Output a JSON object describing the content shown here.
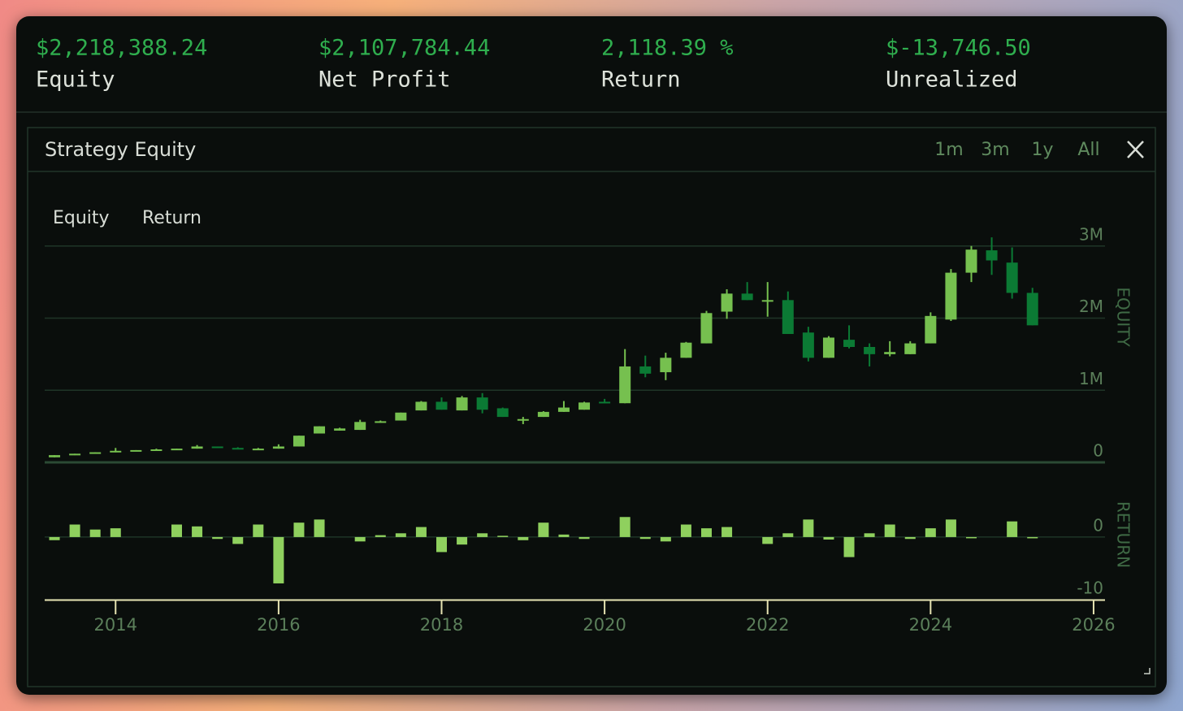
{
  "header": {
    "stats": [
      {
        "value": "$2,218,388.24",
        "label": "Equity"
      },
      {
        "value": "$2,107,784.44",
        "label": "Net Profit"
      },
      {
        "value": "2,118.39 %",
        "label": "Return"
      },
      {
        "value": "$-13,746.50",
        "label": "Unrealized"
      }
    ]
  },
  "panel": {
    "title": "Strategy Equity",
    "ranges": [
      "1m",
      "3m",
      "1y",
      "All"
    ],
    "tabs": [
      "Equity",
      "Return"
    ]
  },
  "chart_data": [
    {
      "type": "candlestick",
      "axis_label": "EQUITY",
      "up_color": "#76c04f",
      "down_color": "#0b7a34",
      "x": [
        2013.25,
        2013.5,
        2013.75,
        2014,
        2014.25,
        2014.5,
        2014.75,
        2015,
        2015.25,
        2015.5,
        2015.75,
        2016,
        2016.25,
        2016.5,
        2016.75,
        2017,
        2017.25,
        2017.5,
        2017.75,
        2018,
        2018.25,
        2018.5,
        2018.75,
        2019,
        2019.25,
        2019.5,
        2019.75,
        2020,
        2020.25,
        2020.5,
        2020.75,
        2021,
        2021.25,
        2021.5,
        2021.75,
        2022,
        2022.25,
        2022.5,
        2022.75,
        2023,
        2023.25,
        2023.5,
        2023.75,
        2024,
        2024.25,
        2024.5,
        2024.75,
        2025,
        2025.25
      ],
      "open": [
        70000,
        100000,
        120000,
        140000,
        160000,
        170000,
        180000,
        190000,
        220000,
        200000,
        180000,
        190000,
        220000,
        400000,
        440000,
        450000,
        550000,
        580000,
        720000,
        840000,
        720000,
        900000,
        750000,
        600000,
        630000,
        700000,
        730000,
        840000,
        820000,
        1330000,
        1250000,
        1450000,
        1650000,
        2090000,
        2340000,
        2250000,
        2250000,
        1800000,
        1450000,
        1700000,
        1600000,
        1500000,
        1500000,
        1650000,
        1980000,
        2630000,
        2940000,
        2770000,
        2350000
      ],
      "close": [
        100000,
        120000,
        140000,
        160000,
        170000,
        180000,
        190000,
        220000,
        200000,
        180000,
        190000,
        220000,
        370000,
        500000,
        470000,
        560000,
        570000,
        690000,
        840000,
        730000,
        900000,
        730000,
        630000,
        600000,
        700000,
        760000,
        830000,
        820000,
        1330000,
        1230000,
        1450000,
        1660000,
        2070000,
        2340000,
        2250000,
        2250000,
        1780000,
        1450000,
        1730000,
        1600000,
        1500000,
        1530000,
        1650000,
        2030000,
        2630000,
        2950000,
        2800000,
        2350000,
        1900000
      ],
      "high": [
        100000,
        120000,
        140000,
        200000,
        170000,
        190000,
        190000,
        240000,
        220000,
        210000,
        200000,
        250000,
        370000,
        500000,
        480000,
        590000,
        580000,
        690000,
        850000,
        900000,
        920000,
        960000,
        760000,
        630000,
        710000,
        850000,
        840000,
        880000,
        1570000,
        1480000,
        1520000,
        1670000,
        2100000,
        2400000,
        2500000,
        2500000,
        2370000,
        1880000,
        1750000,
        1900000,
        1650000,
        1680000,
        1680000,
        2080000,
        2680000,
        3000000,
        3120000,
        2980000,
        2420000
      ],
      "low": [
        70000,
        100000,
        120000,
        140000,
        160000,
        170000,
        180000,
        190000,
        200000,
        180000,
        180000,
        190000,
        220000,
        400000,
        440000,
        450000,
        550000,
        580000,
        720000,
        730000,
        720000,
        680000,
        630000,
        530000,
        630000,
        700000,
        730000,
        820000,
        820000,
        1180000,
        1140000,
        1450000,
        1650000,
        1990000,
        2250000,
        2020000,
        1780000,
        1400000,
        1450000,
        1580000,
        1330000,
        1470000,
        1500000,
        1650000,
        1960000,
        2500000,
        2600000,
        2270000,
        1900000
      ],
      "ylim": [
        0,
        3200000
      ],
      "yticks": [
        0,
        {
          "value": 1000000,
          "label": "1M"
        },
        {
          "value": 2000000,
          "label": "2M"
        },
        {
          "value": 3000000,
          "label": "3M"
        }
      ]
    },
    {
      "type": "bar",
      "axis_label": "RETURN",
      "color": "#8fd05e",
      "x": [
        2013.25,
        2013.5,
        2013.75,
        2014,
        2014.25,
        2014.5,
        2014.75,
        2015,
        2015.25,
        2015.5,
        2015.75,
        2016,
        2016.25,
        2016.5,
        2016.75,
        2017,
        2017.25,
        2017.5,
        2017.75,
        2018,
        2018.25,
        2018.5,
        2018.75,
        2019,
        2019.25,
        2019.5,
        2019.75,
        2020,
        2020.25,
        2020.5,
        2020.75,
        2021,
        2021.25,
        2021.5,
        2021.75,
        2022,
        2022.25,
        2022.5,
        2022.75,
        2023,
        2023.25,
        2023.5,
        2023.75,
        2024,
        2024.25,
        2024.5,
        2024.75,
        2025,
        2025.25
      ],
      "values": [
        -0.5,
        2,
        1.2,
        1.4,
        null,
        null,
        2,
        1.7,
        -0.3,
        -1.1,
        2,
        -7.4,
        2.3,
        2.8,
        null,
        -0.7,
        0.3,
        0.6,
        1.6,
        -2.4,
        -1.2,
        0.6,
        0.2,
        -0.5,
        2.3,
        0.4,
        -0.3,
        null,
        3.2,
        -0.3,
        -0.7,
        2,
        1.4,
        1.6,
        null,
        -1.1,
        0.6,
        2.8,
        -0.4,
        -3.2,
        0.6,
        2,
        -0.3,
        1.4,
        2.8,
        -0.1,
        null,
        2.5,
        -0.2
      ],
      "ylim": [
        -10,
        10.5
      ],
      "yticks": [
        0,
        -10
      ],
      "xlim": [
        2013.13,
        2026.14
      ],
      "xticks": [
        2014,
        2016,
        2018,
        2020,
        2022,
        2024,
        2026
      ]
    }
  ]
}
